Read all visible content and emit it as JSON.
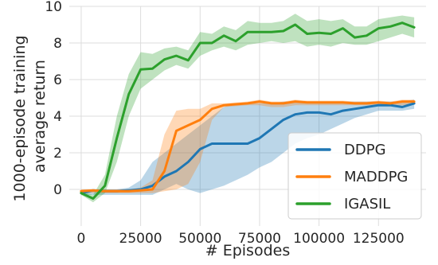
{
  "chart_data": {
    "type": "line",
    "title": "",
    "xlabel": "# Episodes",
    "ylabel_lines": [
      "1000-episode training",
      "average return"
    ],
    "xlim": [
      -5000,
      145000
    ],
    "ylim": [
      -2,
      10
    ],
    "xticks": [
      0,
      25000,
      50000,
      75000,
      100000,
      125000
    ],
    "xtick_labels": [
      "0",
      "25000",
      "50000",
      "75000",
      "100000",
      "125000"
    ],
    "yticks": [
      0,
      2,
      4,
      6,
      8,
      10
    ],
    "ytick_labels": [
      "0",
      "2",
      "4",
      "6",
      "8",
      "10"
    ],
    "grid": true,
    "legend_position": "lower-right",
    "series": [
      {
        "name": "DDPG",
        "color": "#1f77b4",
        "x": [
          0,
          5000,
          10000,
          15000,
          20000,
          25000,
          30000,
          35000,
          40000,
          45000,
          50000,
          55000,
          60000,
          65000,
          70000,
          75000,
          80000,
          85000,
          90000,
          95000,
          100000,
          105000,
          110000,
          115000,
          120000,
          125000,
          130000,
          135000,
          140000
        ],
        "y": [
          -0.2,
          -0.05,
          -0.1,
          -0.1,
          -0.05,
          0.0,
          0.2,
          0.7,
          1.0,
          1.5,
          2.2,
          2.5,
          2.5,
          2.5,
          2.5,
          2.8,
          3.3,
          3.8,
          4.1,
          4.2,
          4.2,
          4.1,
          4.3,
          4.4,
          4.5,
          4.6,
          4.6,
          4.5,
          4.7
        ],
        "lower": [
          -0.3,
          -0.3,
          -0.3,
          -0.3,
          -0.3,
          -0.3,
          -0.3,
          0.0,
          0.3,
          0.0,
          -0.2,
          0.0,
          0.2,
          0.5,
          0.8,
          1.2,
          1.5,
          2.0,
          2.5,
          2.8,
          3.0,
          3.3,
          3.6,
          3.9,
          4.1,
          4.3,
          4.3,
          4.3,
          4.4
        ],
        "upper": [
          -0.1,
          0.0,
          0.0,
          0.0,
          0.1,
          0.5,
          1.5,
          2.0,
          2.5,
          3.0,
          3.5,
          4.0,
          4.5,
          4.7,
          4.7,
          4.7,
          4.7,
          4.8,
          4.8,
          4.8,
          4.8,
          4.8,
          4.8,
          4.8,
          4.8,
          4.8,
          4.8,
          4.8,
          4.9
        ]
      },
      {
        "name": "MADDPG",
        "color": "#ff7f0e",
        "x": [
          0,
          5000,
          10000,
          15000,
          20000,
          25000,
          30000,
          35000,
          40000,
          45000,
          50000,
          55000,
          60000,
          65000,
          70000,
          75000,
          80000,
          85000,
          90000,
          95000,
          100000,
          105000,
          110000,
          115000,
          120000,
          125000,
          130000,
          135000,
          140000
        ],
        "y": [
          -0.1,
          -0.05,
          -0.1,
          -0.1,
          -0.1,
          -0.05,
          0.0,
          1.0,
          3.2,
          3.5,
          3.8,
          4.4,
          4.6,
          4.65,
          4.7,
          4.8,
          4.7,
          4.7,
          4.8,
          4.75,
          4.75,
          4.75,
          4.75,
          4.7,
          4.7,
          4.75,
          4.7,
          4.8,
          4.8
        ],
        "lower": [
          -0.2,
          -0.2,
          -0.2,
          -0.2,
          -0.2,
          -0.2,
          -0.2,
          -0.1,
          0.0,
          0.3,
          1.5,
          3.8,
          4.5,
          4.55,
          4.6,
          4.6,
          4.5,
          4.5,
          4.6,
          4.6,
          4.6,
          4.6,
          4.6,
          4.6,
          4.6,
          4.6,
          4.55,
          4.6,
          4.65
        ],
        "upper": [
          0.0,
          0.0,
          0.0,
          0.0,
          0.0,
          0.1,
          0.5,
          3.0,
          4.3,
          4.4,
          4.4,
          4.7,
          4.7,
          4.75,
          4.8,
          4.9,
          4.8,
          4.8,
          4.9,
          4.85,
          4.85,
          4.85,
          4.85,
          4.8,
          4.8,
          4.85,
          4.8,
          4.9,
          4.9
        ]
      },
      {
        "name": "IGASIL",
        "color": "#2ca02c",
        "x": [
          0,
          5000,
          10000,
          15000,
          20000,
          25000,
          30000,
          35000,
          40000,
          45000,
          50000,
          55000,
          60000,
          65000,
          70000,
          75000,
          80000,
          85000,
          90000,
          95000,
          100000,
          105000,
          110000,
          115000,
          120000,
          125000,
          130000,
          135000,
          140000
        ],
        "y": [
          -0.2,
          -0.5,
          0.2,
          2.8,
          5.2,
          6.55,
          6.6,
          7.1,
          7.3,
          7.05,
          8.0,
          8.0,
          8.4,
          8.1,
          8.6,
          8.6,
          8.6,
          8.65,
          9.0,
          8.5,
          8.55,
          8.5,
          8.8,
          8.3,
          8.4,
          8.8,
          8.9,
          9.1,
          8.85
        ],
        "lower": [
          -0.3,
          -0.7,
          -0.2,
          1.5,
          4.0,
          5.5,
          6.0,
          6.5,
          6.8,
          6.6,
          7.3,
          7.6,
          7.8,
          7.6,
          7.9,
          8.0,
          8.1,
          8.0,
          8.1,
          7.8,
          7.9,
          7.8,
          8.0,
          7.9,
          7.9,
          8.1,
          8.3,
          8.5,
          8.3
        ],
        "upper": [
          -0.1,
          -0.3,
          0.8,
          4.0,
          6.3,
          7.5,
          7.4,
          7.7,
          7.8,
          7.6,
          8.6,
          8.5,
          8.9,
          8.7,
          9.2,
          9.1,
          9.1,
          9.2,
          9.6,
          9.2,
          9.3,
          9.2,
          9.3,
          8.9,
          8.9,
          9.3,
          9.4,
          9.5,
          9.4
        ]
      }
    ]
  }
}
